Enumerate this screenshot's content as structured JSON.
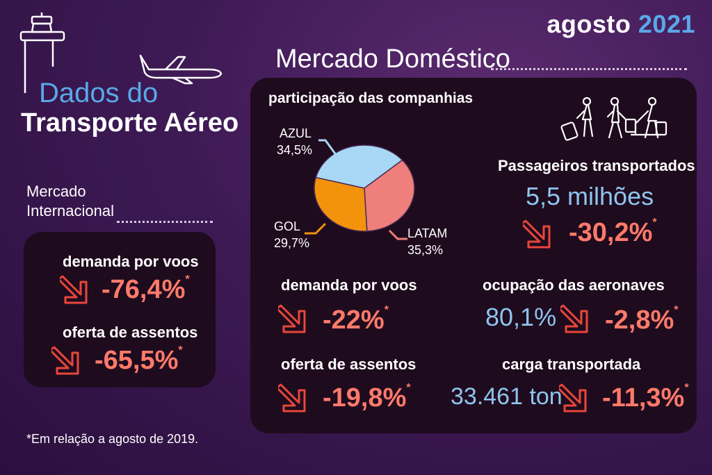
{
  "header": {
    "month": "agosto",
    "year": "2021",
    "brand_line1": "Dados do",
    "brand_line2": "Transporte Aéreo"
  },
  "international": {
    "title_line1": "Mercado",
    "title_line2": "Internacional",
    "demand_label": "demanda por voos",
    "demand_value": "-76,4%",
    "supply_label": "oferta de assentos",
    "supply_value": "-65,5%"
  },
  "domestic": {
    "title": "Mercado Doméstico",
    "share_title": "participação das companhias",
    "airlines": [
      {
        "name": "AZUL",
        "share": "34,5%",
        "value": 34.5,
        "color": "#a8d8f5"
      },
      {
        "name": "LATAM",
        "share": "35,3%",
        "value": 35.3,
        "color": "#ef7f7a"
      },
      {
        "name": "GOL",
        "share": "29,7%",
        "value": 29.7,
        "color": "#f3930c"
      }
    ],
    "passengers_label": "Passageiros transportados",
    "passengers_value": "5,5 milhões",
    "passengers_change": "-30,2%",
    "demand_label": "demanda por voos",
    "demand_change": "-22%",
    "occupancy_label": "ocupação das aeronaves",
    "occupancy_value": "80,1%",
    "occupancy_change": "-2,8%",
    "supply_label": "oferta de assentos",
    "supply_change": "-19,8%",
    "cargo_label": "carga transportada",
    "cargo_value": "33.461 ton",
    "cargo_change": "-11,3%"
  },
  "asterisk": "*",
  "footnote": "*Em relação a agosto de 2019.",
  "colors": {
    "negative": "#ff7a6a",
    "accent_blue": "#5aa8e8",
    "panel": "#1f0b1e"
  }
}
